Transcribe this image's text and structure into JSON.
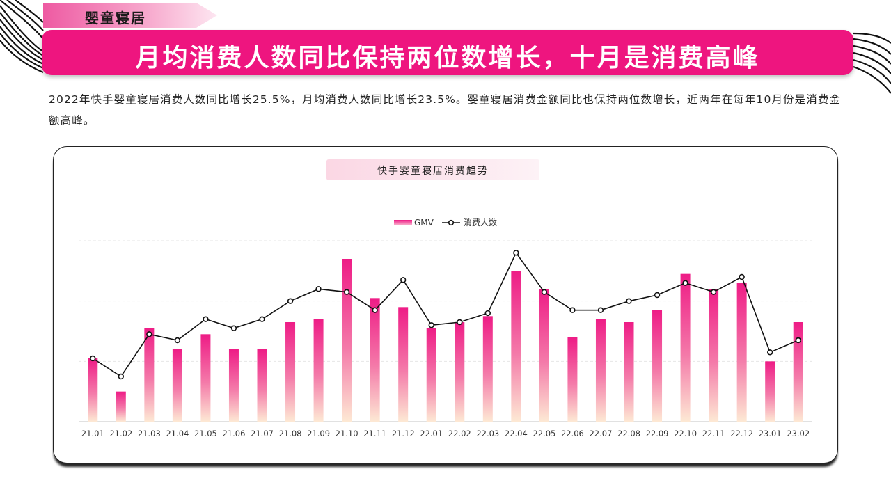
{
  "section_tag": "婴童寝居",
  "title": "月均消费人数同比保持两位数增长，十月是消费高峰",
  "description": "2022年快手婴童寝居消费人数同比增长25.5%，月均消费人数同比增长23.5%。婴童寝居消费金额同比也保持两位数增长，近两年在每年10月份是消费金额高峰。",
  "colors": {
    "accent": "#ee157f",
    "bar_top": "#ee1c86",
    "bar_bottom": "#fde9d4",
    "line": "#111111"
  },
  "chart_data": {
    "type": "bar",
    "title": "快手婴童寝居消费趋势",
    "legend_position": "top-center",
    "grid": true,
    "categories": [
      "21.01",
      "21.02",
      "21.03",
      "21.04",
      "21.05",
      "21.06",
      "21.07",
      "21.08",
      "21.09",
      "21.10",
      "21.11",
      "21.12",
      "22.01",
      "22.02",
      "22.03",
      "22.04",
      "22.05",
      "22.06",
      "22.07",
      "22.08",
      "22.09",
      "22.10",
      "22.11",
      "22.12",
      "23.01",
      "23.02"
    ],
    "ylim": [
      0,
      60
    ],
    "series": [
      {
        "name": "GMV",
        "type": "bar",
        "values": [
          21,
          10,
          31,
          24,
          29,
          24,
          24,
          33,
          34,
          54,
          41,
          38,
          31,
          33,
          35,
          50,
          44,
          28,
          34,
          33,
          37,
          49,
          44,
          46,
          20,
          33
        ]
      },
      {
        "name": "消费人数",
        "type": "line",
        "values": [
          21,
          15,
          29,
          27,
          34,
          31,
          34,
          40,
          44,
          43,
          37,
          47,
          32,
          33,
          36,
          56,
          43,
          37,
          37,
          40,
          42,
          46,
          43,
          48,
          23,
          27
        ]
      }
    ]
  }
}
